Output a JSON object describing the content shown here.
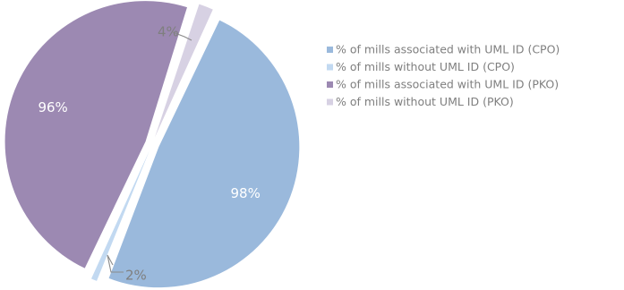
{
  "chart_data": {
    "type": "pie",
    "title": "",
    "legend_position": "right",
    "series": [
      {
        "name": "CPO",
        "slices": [
          {
            "label": "% of mills associated with UML ID (CPO)",
            "value": 98,
            "display": "98%",
            "color": "#9ab9dc"
          },
          {
            "label": "% of mills without UML ID (CPO)",
            "value": 2,
            "display": "2%",
            "color": "#c2d9f1"
          }
        ]
      },
      {
        "name": "PKO",
        "slices": [
          {
            "label": "% of mills associated with UML ID (PKO)",
            "value": 96,
            "display": "96%",
            "color": "#9c89b2"
          },
          {
            "label": "% of mills without UML ID (PKO)",
            "value": 4,
            "display": "4%",
            "color": "#d7d1e3"
          }
        ]
      }
    ]
  }
}
